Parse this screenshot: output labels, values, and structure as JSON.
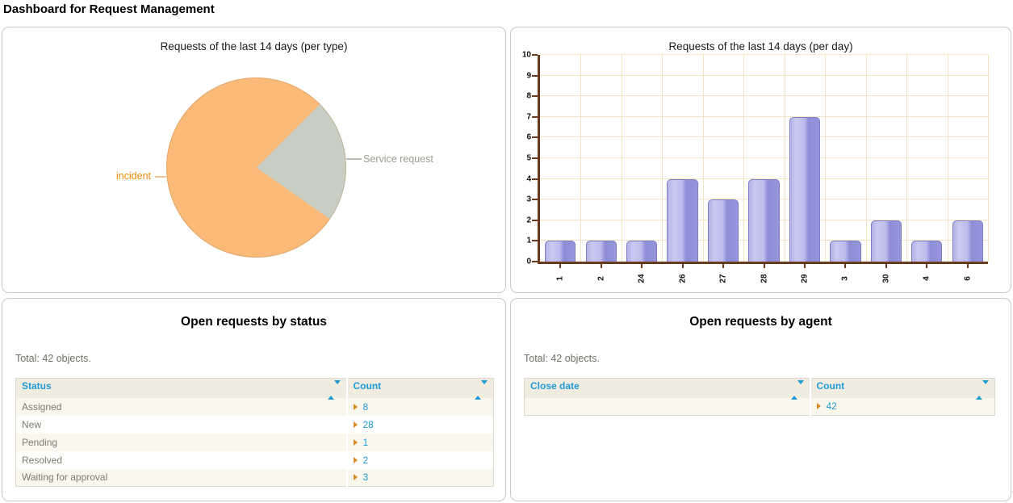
{
  "page_title": "Dashboard for Request Management",
  "status_panel": {
    "title": "Open requests by status",
    "total": "Total: 42 objects.",
    "col1": "Status",
    "col2": "Count",
    "rows": [
      {
        "label": "Assigned",
        "count": "8"
      },
      {
        "label": "New",
        "count": "28"
      },
      {
        "label": "Pending",
        "count": "1"
      },
      {
        "label": "Resolved",
        "count": "2"
      },
      {
        "label": "Waiting for approval",
        "count": "3"
      }
    ]
  },
  "agent_panel": {
    "title": "Open requests by agent",
    "total": "Total: 42 objects.",
    "col1": "Close date",
    "col2": "Count",
    "rows": [
      {
        "label": "",
        "count": "42"
      }
    ]
  },
  "colors": {
    "accent_blue": "#1f9ad7",
    "drilldown_orange": "#dc8a28",
    "axis_brown": "#693a1b",
    "grid_tan": "#f3e5c1",
    "table_header_beige": "#f0ede0",
    "row_beige": "#f9f7eb",
    "pie_incident": "#fcba78",
    "pie_service": "#c9cec2",
    "bar_fill": "#9696dc",
    "bar_border": "#7d7dc6"
  },
  "chart_data": [
    {
      "type": "pie",
      "title": "Requests of the last 14 days (per type)",
      "labels": [
        "incident",
        "Service request"
      ],
      "values": [
        21,
        6
      ],
      "percentages": [
        78,
        22
      ],
      "colors": [
        "#fcba78",
        "#c9cec2"
      ],
      "label_colors": [
        "#ee8b0a",
        "#98a08d"
      ],
      "start_angle_deg": 125,
      "legend_position": "callout-labels"
    },
    {
      "type": "bar",
      "title": "Requests of the last 14 days (per day)",
      "categories": [
        "1",
        "2",
        "24",
        "26",
        "27",
        "28",
        "29",
        "3",
        "30",
        "4",
        "6"
      ],
      "values": [
        1,
        1,
        1,
        4,
        3,
        4,
        7,
        1,
        2,
        1,
        2
      ],
      "xlabel": "",
      "ylabel": "",
      "ylim": [
        0,
        10
      ],
      "ytick_step": 1,
      "grid": true,
      "legend_position": "none"
    }
  ]
}
